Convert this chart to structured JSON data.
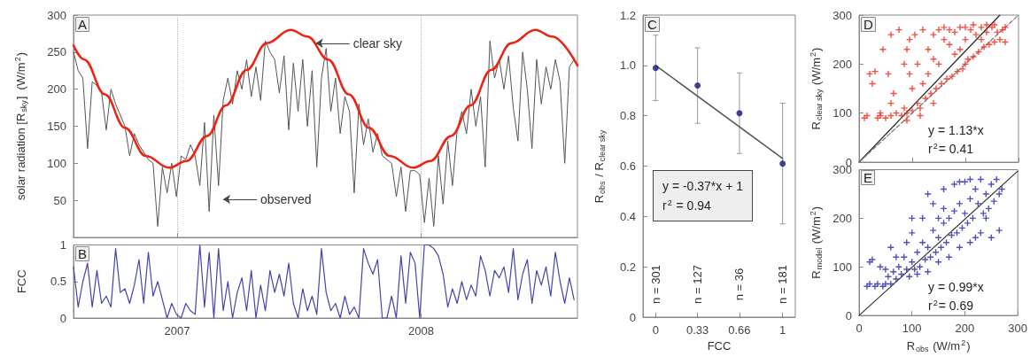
{
  "chart_data": [
    {
      "type": "line",
      "title": "A",
      "ylabel": "solar radiation [R$_{sky}$]  (W/m$^{2}$)",
      "xlim": [
        "2006-07-30",
        "2008-08-22"
      ],
      "xticks": [
        {
          "value": "2007-01-01",
          "label": null
        },
        {
          "value": "2008-01-01",
          "label": null
        }
      ],
      "ylim": [
        0,
        300
      ],
      "yticks": [
        50,
        100,
        150,
        200,
        250,
        300
      ],
      "grid": "x",
      "tick_labels": "y",
      "x": [
        "2006-07-30",
        "2006-08-06",
        "2006-08-13",
        "2006-08-20",
        "2006-08-27",
        "2006-09-03",
        "2006-09-10",
        "2006-09-17",
        "2006-09-24",
        "2006-10-01",
        "2006-10-08",
        "2006-10-15",
        "2006-10-22",
        "2006-10-29",
        "2006-11-05",
        "2006-11-12",
        "2006-11-19",
        "2006-11-26",
        "2006-12-03",
        "2006-12-10",
        "2006-12-17",
        "2006-12-24",
        "2006-12-31",
        "2007-01-07",
        "2007-01-14",
        "2007-01-21",
        "2007-01-28",
        "2007-02-04",
        "2007-02-11",
        "2007-02-18",
        "2007-02-25",
        "2007-03-04",
        "2007-03-11",
        "2007-03-18",
        "2007-03-25",
        "2007-04-01",
        "2007-04-08",
        "2007-04-15",
        "2007-04-22",
        "2007-04-29",
        "2007-05-06",
        "2007-05-13",
        "2007-05-20",
        "2007-05-27",
        "2007-06-03",
        "2007-06-10",
        "2007-06-17",
        "2007-06-24",
        "2007-07-01",
        "2007-07-08",
        "2007-07-15",
        "2007-07-22",
        "2007-07-29",
        "2007-08-05",
        "2007-08-12",
        "2007-08-19",
        "2007-08-26",
        "2007-09-02",
        "2007-09-09",
        "2007-09-16",
        "2007-09-23",
        "2007-09-30",
        "2007-10-07",
        "2007-10-14",
        "2007-10-21",
        "2007-10-28",
        "2007-11-04",
        "2007-11-11",
        "2007-11-18",
        "2007-11-25",
        "2007-12-02",
        "2007-12-09",
        "2007-12-16",
        "2007-12-23",
        "2007-12-30",
        "2008-01-06",
        "2008-01-13",
        "2008-01-20",
        "2008-01-27",
        "2008-02-03",
        "2008-02-10",
        "2008-02-17",
        "2008-02-24",
        "2008-03-02",
        "2008-03-09",
        "2008-03-16",
        "2008-03-23",
        "2008-03-30",
        "2008-04-06",
        "2008-04-13",
        "2008-04-20",
        "2008-04-27",
        "2008-05-04",
        "2008-05-11",
        "2008-05-18",
        "2008-05-25",
        "2008-06-01",
        "2008-06-08",
        "2008-06-15",
        "2008-06-22",
        "2008-06-29",
        "2008-07-06",
        "2008-07-13",
        "2008-07-20",
        "2008-07-27",
        "2008-08-03",
        "2008-08-10",
        "2008-08-17"
      ],
      "series": [
        {
          "color": "#555555",
          "values": [
            250,
            225,
            215,
            120,
            210,
            205,
            195,
            145,
            200,
            180,
            165,
            150,
            110,
            140,
            125,
            115,
            105,
            100,
            15,
            95,
            60,
            100,
            55,
            110,
            105,
            125,
            110,
            70,
            155,
            35,
            165,
            70,
            185,
            215,
            180,
            225,
            200,
            240,
            190,
            230,
            185,
            265,
            250,
            240,
            195,
            245,
            145,
            235,
            170,
            240,
            150,
            225,
            95,
            215,
            255,
            170,
            215,
            140,
            190,
            170,
            60,
            180,
            125,
            160,
            115,
            140,
            110,
            105,
            100,
            55,
            95,
            35,
            90,
            90,
            85,
            20,
            80,
            15,
            110,
            45,
            130,
            70,
            145,
            170,
            140,
            200,
            150,
            190,
            95,
            265,
            215,
            240,
            200,
            245,
            175,
            130,
            250,
            200,
            120,
            240,
            180,
            230,
            200,
            240,
            210,
            100,
            230,
            240
          ]
        },
        {
          "color": "#ee2211",
          "x": [
            "2006-07-30",
            "2006-08-15",
            "2006-09-15",
            "2006-10-15",
            "2006-11-15",
            "2006-12-20",
            "2007-01-15",
            "2007-02-15",
            "2007-03-15",
            "2007-04-15",
            "2007-05-15",
            "2007-06-20",
            "2007-07-15",
            "2007-08-15",
            "2007-09-15",
            "2007-10-15",
            "2007-11-15",
            "2007-12-20",
            "2008-01-15",
            "2008-02-15",
            "2008-03-15",
            "2008-04-15",
            "2008-05-15",
            "2008-06-20",
            "2008-07-15",
            "2008-08-22"
          ],
          "values": [
            259,
            240,
            193,
            148,
            110,
            94,
            103,
            137,
            178,
            226,
            262,
            280,
            271,
            240,
            193,
            148,
            110,
            94,
            103,
            137,
            178,
            226,
            262,
            280,
            271,
            232
          ]
        }
      ],
      "annotations": [
        {
          "text": "clear sky",
          "x": "2007-07-25",
          "y": 262
        },
        "observed"
      ]
    },
    {
      "type": "line",
      "title": "B",
      "ylabel": "FCC",
      "xlim": [
        "2006-07-30",
        "2008-08-22"
      ],
      "xticks": [
        {
          "value": "2007-01-01",
          "label": "2007"
        },
        {
          "value": "2008-01-01",
          "label": "2008"
        }
      ],
      "ylim": [
        0,
        1
      ],
      "yticks": [
        0,
        0.5,
        1
      ],
      "grid": "x",
      "x": [
        "2006-07-30",
        "2006-08-06",
        "2006-08-13",
        "2006-08-20",
        "2006-08-27",
        "2006-09-03",
        "2006-09-10",
        "2006-09-17",
        "2006-09-24",
        "2006-10-01",
        "2006-10-08",
        "2006-10-15",
        "2006-10-22",
        "2006-10-29",
        "2006-11-05",
        "2006-11-12",
        "2006-11-19",
        "2006-11-26",
        "2006-12-03",
        "2006-12-10",
        "2006-12-17",
        "2006-12-24",
        "2006-12-31",
        "2007-01-07",
        "2007-01-14",
        "2007-01-21",
        "2007-01-28",
        "2007-02-04",
        "2007-02-11",
        "2007-02-18",
        "2007-02-25",
        "2007-03-04",
        "2007-03-11",
        "2007-03-18",
        "2007-03-25",
        "2007-04-01",
        "2007-04-08",
        "2007-04-15",
        "2007-04-22",
        "2007-04-29",
        "2007-05-06",
        "2007-05-13",
        "2007-05-20",
        "2007-05-27",
        "2007-06-03",
        "2007-06-10",
        "2007-06-17",
        "2007-06-24",
        "2007-07-01",
        "2007-07-08",
        "2007-07-15",
        "2007-07-22",
        "2007-07-29",
        "2007-08-05",
        "2007-08-12",
        "2007-08-19",
        "2007-08-26",
        "2007-09-02",
        "2007-09-09",
        "2007-09-16",
        "2007-09-23",
        "2007-09-30",
        "2007-10-07",
        "2007-10-14",
        "2007-10-21",
        "2007-10-28",
        "2007-11-04",
        "2007-11-11",
        "2007-11-18",
        "2007-11-25",
        "2007-12-02",
        "2007-12-09",
        "2007-12-16",
        "2007-12-23",
        "2007-12-30",
        "2008-01-06",
        "2008-01-13",
        "2008-01-20",
        "2008-01-27",
        "2008-02-03",
        "2008-02-10",
        "2008-02-17",
        "2008-02-24",
        "2008-03-02",
        "2008-03-09",
        "2008-03-16",
        "2008-03-23",
        "2008-03-30",
        "2008-04-06",
        "2008-04-13",
        "2008-04-20",
        "2008-04-27",
        "2008-05-04",
        "2008-05-11",
        "2008-05-18",
        "2008-05-25",
        "2008-06-01",
        "2008-06-08",
        "2008-06-15",
        "2008-06-22",
        "2008-06-29",
        "2008-07-06",
        "2008-07-13",
        "2008-07-20",
        "2008-07-27",
        "2008-08-03",
        "2008-08-10",
        "2008-08-17"
      ],
      "series": [
        {
          "color": "#4444aa",
          "values": [
            0.7,
            0.15,
            0.5,
            0.75,
            0.15,
            0.65,
            0.2,
            0.3,
            0.15,
            0.95,
            0.35,
            0.4,
            0.2,
            0.45,
            0.8,
            0.2,
            0.9,
            0.3,
            0.5,
            0.25,
            0.0,
            0.2,
            0.05,
            0.0,
            0.2,
            0.1,
            0.05,
            1.0,
            0.15,
            0.9,
            0.0,
            0.95,
            0.1,
            0.5,
            0.0,
            0.35,
            0.55,
            0.1,
            0.65,
            0.0,
            0.45,
            0.1,
            0.65,
            0.35,
            0.6,
            0.3,
            0.75,
            0.2,
            0.0,
            0.4,
            0.1,
            0.3,
            0.05,
            0.95,
            0.35,
            0.1,
            0.2,
            0.0,
            0.3,
            0.05,
            0.15,
            0.0,
            0.95,
            0.75,
            0.6,
            0.8,
            0.0,
            0.0,
            0.3,
            0.0,
            0.85,
            0.2,
            0.9,
            0.75,
            0.0,
            1.0,
            1.0,
            0.95,
            0.85,
            0.6,
            0.15,
            0.4,
            0.2,
            0.5,
            0.25,
            0.45,
            0.3,
            0.85,
            0.65,
            0.3,
            0.65,
            0.55,
            0.7,
            0.35,
            0.95,
            0.25,
            0.6,
            0.8,
            0.2,
            0.65,
            0.45,
            0.7,
            0.3,
            0.9,
            0.5,
            0.2,
            0.55,
            0.25
          ]
        }
      ]
    },
    {
      "type": "scatter",
      "title": "C",
      "xlabel": "FCC",
      "ylabel": "R$_{obs}$ / R$_{clear sky}$",
      "xlim": [
        -0.1,
        1.1
      ],
      "xticks": [
        0,
        0.33,
        0.66,
        1
      ],
      "ylim": [
        0,
        1.2
      ],
      "yticks": [
        0,
        0.2,
        0.4,
        0.6,
        0.8,
        {
          "value": 1,
          "label": "1.0"
        },
        1.2
      ],
      "series": [
        {
          "color": "#222288",
          "marker": "circle",
          "x": [
            0,
            0.33,
            0.66,
            1
          ],
          "values": [
            0.99,
            0.92,
            0.81,
            0.61
          ],
          "errors": [
            [
              0.86,
              1.12
            ],
            [
              0.77,
              1.07
            ],
            [
              0.65,
              0.97
            ],
            [
              0.37,
              0.85
            ]
          ]
        },
        {
          "type": "line",
          "color": "#555555",
          "x": [
            0,
            1
          ],
          "values": [
            1,
            0.63
          ]
        }
      ],
      "annotations": [
        "y = -0.37*x + 1",
        "r$^{2}$ = 0.94",
        "n = 301",
        "n = 127",
        "n = 36",
        "n = 181"
      ]
    },
    {
      "type": "scatter",
      "title": "D",
      "ylabel": "R$_{clear sky}$ (W/m$^{2}$)",
      "xlim": [
        0,
        300
      ],
      "xticks": [
        0,
        100,
        200,
        300
      ],
      "ylim": [
        0,
        300
      ],
      "yticks": [
        0,
        100,
        200,
        300
      ],
      "tick_labels": "y",
      "series": [
        {
          "color": "#ee3322",
          "marker": "cross",
          "x": [
            10,
            15,
            20,
            25,
            30,
            35,
            40,
            45,
            50,
            55,
            60,
            65,
            70,
            75,
            80,
            85,
            90,
            95,
            100,
            105,
            110,
            110,
            115,
            120,
            125,
            130,
            135,
            140,
            145,
            150,
            150,
            155,
            160,
            165,
            170,
            175,
            180,
            185,
            190,
            195,
            200,
            200,
            205,
            210,
            215,
            220,
            225,
            230,
            235,
            240,
            245,
            250,
            255,
            260,
            265,
            270,
            275,
            275,
            130,
            120,
            90,
            95,
            140,
            180,
            170,
            200,
            215,
            240,
            255,
            60,
            85,
            100,
            60,
            40,
            115,
            90,
            230,
            190,
            160,
            140
          ],
          "values": [
            90,
            95,
            180,
            160,
            185,
            90,
            95,
            230,
            90,
            180,
            95,
            140,
            100,
            270,
            95,
            110,
            100,
            250,
            105,
            260,
            120,
            200,
            110,
            270,
            130,
            230,
            140,
            260,
            150,
            270,
            200,
            160,
            275,
            170,
            240,
            175,
            265,
            185,
            275,
            190,
            250,
            200,
            210,
            270,
            215,
            260,
            225,
            275,
            235,
            265,
            240,
            275,
            245,
            265,
            250,
            270,
            245,
            275,
            180,
            160,
            230,
            180,
            210,
            220,
            270,
            275,
            280,
            280,
            280,
            260,
            200,
            150,
            120,
            100,
            95,
            85,
            250,
            230,
            250,
            120
          ]
        },
        {
          "type": "line",
          "color": "#222222",
          "x": [
            0,
            265
          ],
          "values": [
            0,
            300
          ]
        },
        {
          "type": "line",
          "color": "#777777",
          "line_style": "dashed",
          "x": [
            0,
            300
          ],
          "values": [
            0,
            300
          ]
        }
      ],
      "annotations": [
        "y = 1.13*x",
        "r$^{2}$= 0.41"
      ]
    },
    {
      "type": "scatter",
      "title": "E",
      "xlabel": "R$_{obs}$ (W/m$^{2}$)",
      "ylabel": "R$_{model}$ (W/m$^{2}$)",
      "xlim": [
        0,
        300
      ],
      "xticks": [
        0,
        100,
        200,
        300
      ],
      "ylim": [
        0,
        300
      ],
      "yticks": [
        0,
        100,
        200,
        300
      ],
      "series": [
        {
          "color": "#3333aa",
          "marker": "cross",
          "x": [
            15,
            20,
            20,
            25,
            30,
            40,
            45,
            50,
            55,
            60,
            60,
            65,
            70,
            75,
            80,
            85,
            90,
            90,
            95,
            100,
            100,
            105,
            110,
            115,
            120,
            120,
            125,
            130,
            135,
            140,
            140,
            145,
            150,
            155,
            160,
            160,
            165,
            170,
            175,
            180,
            180,
            185,
            190,
            195,
            200,
            200,
            205,
            210,
            215,
            220,
            220,
            225,
            230,
            235,
            240,
            245,
            250,
            255,
            260,
            265,
            265,
            270,
            250,
            230,
            210,
            190,
            170,
            150,
            130,
            110,
            50,
            35,
            70,
            100,
            130,
            160,
            190,
            240,
            210,
            150
          ],
          "values": [
            60,
            65,
            110,
            115,
            60,
            100,
            60,
            65,
            80,
            65,
            140,
            90,
            75,
            100,
            85,
            120,
            95,
            150,
            80,
            110,
            170,
            95,
            130,
            100,
            150,
            200,
            115,
            140,
            120,
            175,
            230,
            130,
            160,
            140,
            190,
            260,
            150,
            200,
            165,
            215,
            270,
            170,
            230,
            180,
            210,
            275,
            190,
            240,
            200,
            260,
            160,
            230,
            280,
            210,
            250,
            220,
            270,
            235,
            280,
            250,
            175,
            260,
            160,
            170,
            150,
            140,
            120,
            110,
            90,
            85,
            95,
            65,
            120,
            200,
            250,
            220,
            275,
            200,
            280,
            200
          ]
        },
        {
          "type": "line",
          "color": "#333333",
          "x": [
            0,
            300
          ],
          "values": [
            0,
            297
          ]
        }
      ],
      "annotations": [
        "y = 0.99*x",
        "r$^{2}$= 0.69"
      ]
    }
  ]
}
